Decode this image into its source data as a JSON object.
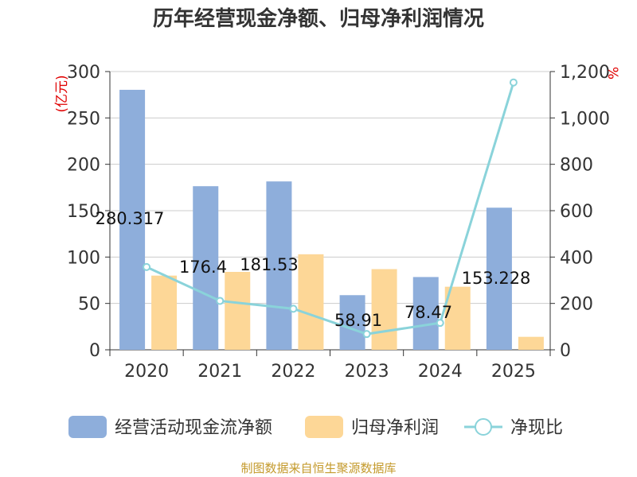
{
  "chart_data": {
    "type": "bar",
    "title": "历年经营现金净额、归母净利润情况",
    "categories": [
      "2020",
      "2021",
      "2022",
      "2023",
      "2024",
      "2025"
    ],
    "series": [
      {
        "name": "经营活动现金流净额",
        "type": "bar",
        "axis": "left",
        "color": "#8eaedb",
        "values": [
          280.317,
          176.4,
          181.53,
          58.91,
          78.47,
          153.228
        ],
        "labels": [
          "280.317",
          "176.4",
          "181.53",
          "58.91",
          "78.47",
          "153.228"
        ]
      },
      {
        "name": "归母净利润",
        "type": "bar",
        "axis": "left",
        "color": "#fdd797",
        "values": [
          80,
          84,
          103,
          87,
          68,
          14
        ]
      },
      {
        "name": "净现比",
        "type": "line",
        "axis": "right",
        "color": "#8ad3da",
        "values": [
          357,
          211,
          177,
          68,
          116,
          1153
        ]
      }
    ],
    "y_left": {
      "unit": "(亿元)",
      "min": 0,
      "max": 300,
      "ticks": [
        0,
        50,
        100,
        150,
        200,
        250,
        300
      ]
    },
    "y_right": {
      "unit": "%",
      "min": 0,
      "max": 1200,
      "ticks": [
        "0",
        "200",
        "400",
        "600",
        "800",
        "1,000",
        "1,200"
      ]
    },
    "grid": true,
    "legend_position": "bottom"
  },
  "source_text": "制图数据来自恒生聚源数据库"
}
